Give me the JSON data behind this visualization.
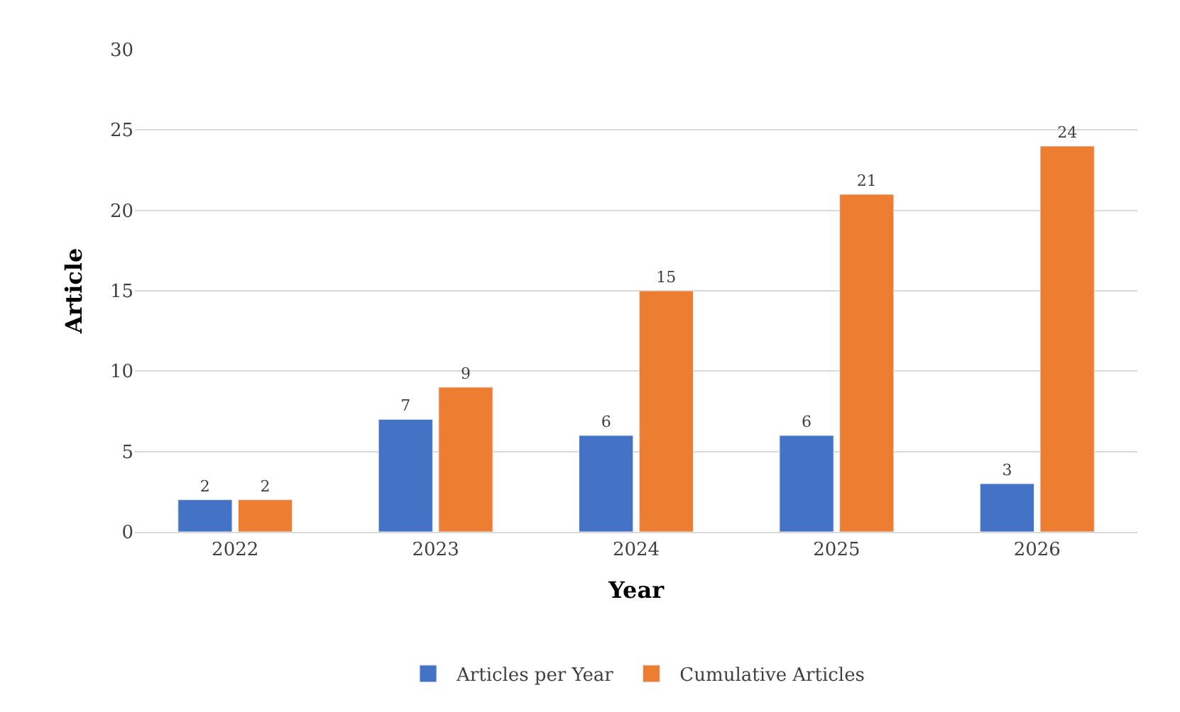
{
  "chart_data": {
    "type": "bar",
    "xlabel": "Year",
    "ylabel": "Article",
    "categories": [
      "2022",
      "2023",
      "2024",
      "2025",
      "2026"
    ],
    "series": [
      {
        "name": "Articles per Year",
        "color": "#4472c4",
        "values": [
          2,
          7,
          6,
          6,
          3
        ]
      },
      {
        "name": "Cumulative Articles",
        "color": "#ed7d31",
        "values": [
          2,
          9,
          15,
          21,
          24
        ]
      }
    ],
    "ylim": [
      0,
      30
    ],
    "yticks": [
      0,
      5,
      10,
      15,
      20,
      25,
      30
    ],
    "grid": "y",
    "legend": "bottom",
    "data_labels": true
  }
}
